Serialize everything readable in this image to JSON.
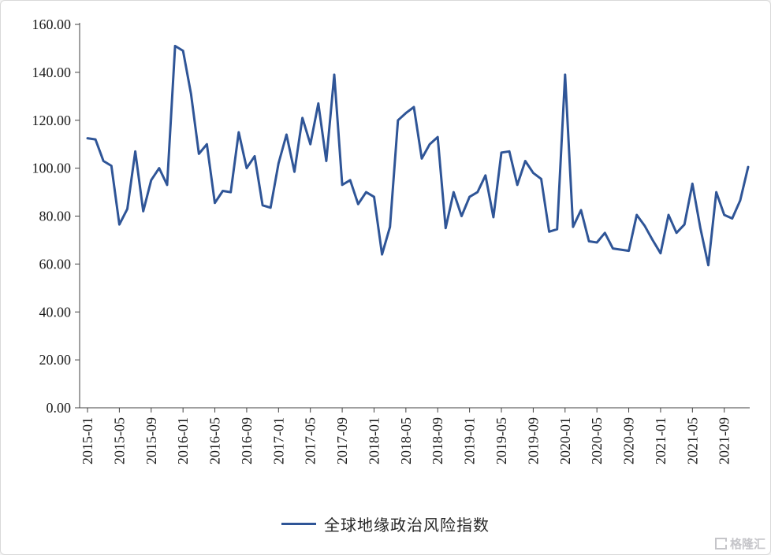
{
  "colors": {
    "line": "#2F5597",
    "axis": "#404040",
    "tick_label": "#1a1a1a",
    "watermark": "#c5c5c9",
    "background": "#ffffff"
  },
  "legend": {
    "label": "全球地缘政治风险指数"
  },
  "watermark": {
    "text": "格隆汇"
  },
  "chart_data": {
    "type": "line",
    "title": "",
    "xlabel": "",
    "ylabel": "",
    "ylim": [
      0,
      160
    ],
    "grid": false,
    "legend_position": "bottom",
    "yticks": [
      "0.00",
      "20.00",
      "40.00",
      "60.00",
      "80.00",
      "100.00",
      "120.00",
      "140.00",
      "160.00"
    ],
    "xticks": [
      "2015-01",
      "2015-05",
      "2015-09",
      "2016-01",
      "2016-05",
      "2016-09",
      "2017-01",
      "2017-05",
      "2017-09",
      "2018-01",
      "2018-05",
      "2018-09",
      "2019-01",
      "2019-05",
      "2019-09",
      "2020-01",
      "2020-05",
      "2020-09",
      "2021-01",
      "2021-05",
      "2021-09"
    ],
    "x": [
      "2015-01",
      "2015-02",
      "2015-03",
      "2015-04",
      "2015-05",
      "2015-06",
      "2015-07",
      "2015-08",
      "2015-09",
      "2015-10",
      "2015-11",
      "2015-12",
      "2016-01",
      "2016-02",
      "2016-03",
      "2016-04",
      "2016-05",
      "2016-06",
      "2016-07",
      "2016-08",
      "2016-09",
      "2016-10",
      "2016-11",
      "2016-12",
      "2017-01",
      "2017-02",
      "2017-03",
      "2017-04",
      "2017-05",
      "2017-06",
      "2017-07",
      "2017-08",
      "2017-09",
      "2017-10",
      "2017-11",
      "2017-12",
      "2018-01",
      "2018-02",
      "2018-03",
      "2018-04",
      "2018-05",
      "2018-06",
      "2018-07",
      "2018-08",
      "2018-09",
      "2018-10",
      "2018-11",
      "2018-12",
      "2019-01",
      "2019-02",
      "2019-03",
      "2019-04",
      "2019-05",
      "2019-06",
      "2019-07",
      "2019-08",
      "2019-09",
      "2019-10",
      "2019-11",
      "2019-12",
      "2020-01",
      "2020-02",
      "2020-03",
      "2020-04",
      "2020-05",
      "2020-06",
      "2020-07",
      "2020-08",
      "2020-09",
      "2020-10",
      "2020-11",
      "2020-12",
      "2021-01",
      "2021-02",
      "2021-03",
      "2021-04",
      "2021-05",
      "2021-06",
      "2021-07",
      "2021-08",
      "2021-09",
      "2021-10",
      "2021-11",
      "2021-12"
    ],
    "series": [
      {
        "name": "全球地缘政治风险指数",
        "color": "#2F5597",
        "values": [
          112.5,
          112,
          103,
          101,
          76.5,
          83,
          107,
          82,
          95,
          100,
          93,
          151,
          149,
          131,
          106,
          110,
          85.5,
          90.5,
          90,
          115,
          100,
          105,
          84.5,
          83.5,
          102,
          114,
          98.5,
          121,
          110,
          127,
          103,
          139,
          93,
          95,
          85,
          90,
          88,
          64,
          75.5,
          120,
          123,
          125.5,
          104,
          110,
          113,
          75,
          90,
          80,
          88,
          90,
          97,
          79.5,
          106.5,
          107,
          93,
          103,
          98,
          95.5,
          73.5,
          74.5,
          139,
          75.5,
          82.5,
          69.5,
          69,
          73,
          66.5,
          66,
          65.5,
          80.5,
          76,
          70,
          64.5,
          80.5,
          73,
          76.5,
          93.5,
          75,
          59.5,
          90,
          80.5,
          79,
          86.5,
          100.5
        ]
      }
    ]
  }
}
